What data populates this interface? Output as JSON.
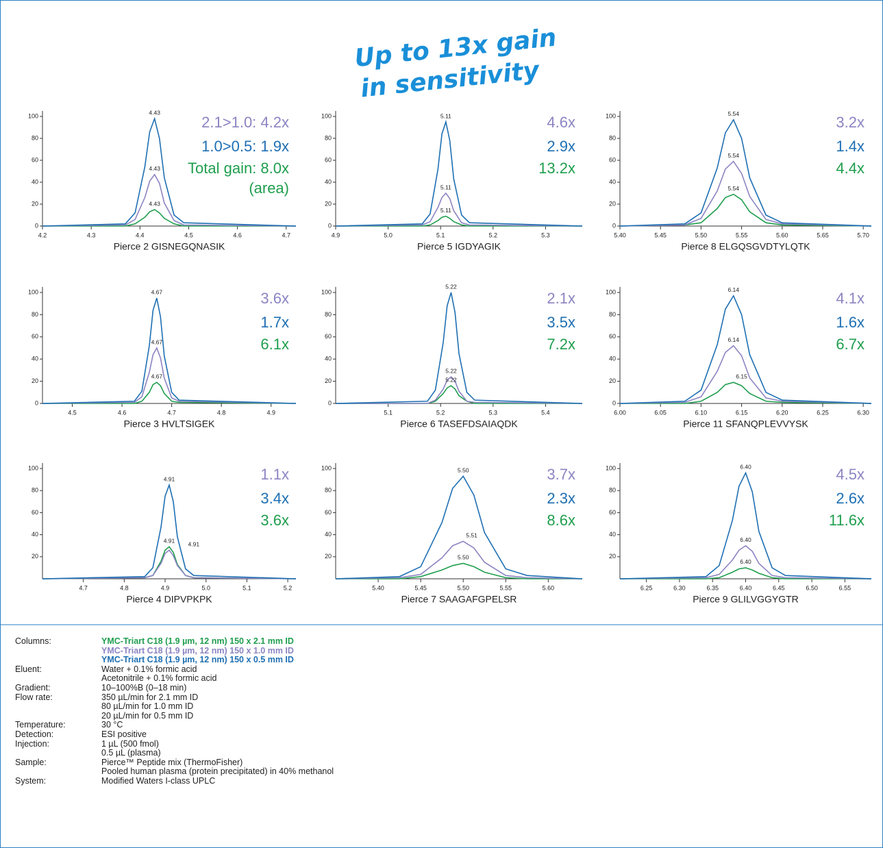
{
  "header": {
    "lines": [
      "Up to 13x gain",
      "in sensitivity"
    ]
  },
  "chart_data": [
    {
      "type": "line",
      "title": "Pierce 2 GISNEGQNASIK",
      "x": [
        4.2,
        4.37,
        4.39,
        4.41,
        4.42,
        4.43,
        4.44,
        4.45,
        4.47,
        4.49,
        4.72
      ],
      "xlim": [
        4.2,
        4.72
      ],
      "xticks": [
        4.2,
        4.3,
        4.4,
        4.5,
        4.6,
        4.7
      ],
      "ylim": [
        0,
        105
      ],
      "yticks": [
        0,
        20,
        40,
        60,
        80,
        100
      ],
      "series": [
        {
          "color": "#1e6fb3",
          "values": [
            0,
            2,
            12,
            54,
            86,
            98,
            80,
            44,
            10,
            3,
            0
          ]
        },
        {
          "color": "#8c84c2",
          "values": [
            0,
            1,
            6,
            26,
            41,
            47,
            39,
            21,
            5,
            1,
            0
          ]
        },
        {
          "color": "#1f9e4e",
          "values": [
            0,
            0,
            2,
            8,
            13,
            15,
            12,
            7,
            2,
            0,
            0
          ]
        }
      ],
      "peak_labels": [
        {
          "x": 4.43,
          "y": 98,
          "label": "4.43"
        },
        {
          "x": 4.43,
          "y": 47,
          "label": "4.43"
        },
        {
          "x": 4.43,
          "y": 15,
          "label": "4.43"
        }
      ],
      "gains": [
        {
          "text": "2.1>1.0: 4.2x",
          "color": "#8c84c2"
        },
        {
          "text": "1.0>0.5: 1.9x",
          "color": "#1e6fb3"
        },
        {
          "text": "Total gain: 8.0x",
          "color": "#1f9e4e"
        },
        {
          "text": "(area)",
          "color": "#1f9e4e"
        }
      ]
    },
    {
      "type": "line",
      "title": "Pierce 5 IGDYAGIK",
      "x": [
        4.9,
        5.065,
        5.08,
        5.095,
        5.1025,
        5.11,
        5.1175,
        5.125,
        5.14,
        5.155,
        5.37
      ],
      "xlim": [
        4.9,
        5.37
      ],
      "xticks": [
        4.9,
        {
          "value": 5.0,
          "label": "5.0"
        },
        5.1,
        5.2,
        5.3
      ],
      "ylim": [
        0,
        105
      ],
      "yticks": [
        0,
        20,
        40,
        60,
        80,
        100
      ],
      "series": [
        {
          "color": "#1e6fb3",
          "values": [
            0,
            2,
            11,
            52,
            84,
            95,
            78,
            43,
            10,
            3,
            0
          ]
        },
        {
          "color": "#8c84c2",
          "values": [
            0,
            1,
            4,
            17,
            26,
            30,
            25,
            14,
            3,
            1,
            0
          ]
        },
        {
          "color": "#1f9e4e",
          "values": [
            0,
            0,
            1,
            5,
            8,
            9,
            7,
            4,
            1,
            0,
            0
          ]
        }
      ],
      "peak_labels": [
        {
          "x": 5.11,
          "y": 95,
          "label": "5.11"
        },
        {
          "x": 5.11,
          "y": 30,
          "label": "5.11"
        },
        {
          "x": 5.11,
          "y": 9,
          "label": "5.11"
        }
      ],
      "gains": [
        {
          "text": "4.6x",
          "color": "#8c84c2"
        },
        {
          "text": "2.9x",
          "color": "#1e6fb3"
        },
        {
          "text": "13.2x",
          "color": "#1f9e4e"
        }
      ]
    },
    {
      "type": "line",
      "title": "Pierce 8 ELGQSGVDTYLQTK",
      "x": [
        5.4,
        5.48,
        5.5,
        5.52,
        5.53,
        5.54,
        5.55,
        5.56,
        5.58,
        5.6,
        5.71
      ],
      "xlim": [
        5.4,
        5.71
      ],
      "xticks": [
        {
          "value": 5.4,
          "label": "5.40"
        },
        5.45,
        {
          "value": 5.5,
          "label": "5.50"
        },
        5.55,
        {
          "value": 5.6,
          "label": "5.60"
        },
        5.65,
        {
          "value": 5.7,
          "label": "5.70"
        }
      ],
      "ylim": [
        0,
        105
      ],
      "yticks": [
        0,
        20,
        40,
        60,
        80,
        100
      ],
      "series": [
        {
          "color": "#1e6fb3",
          "values": [
            0,
            2,
            12,
            53,
            85,
            97,
            80,
            44,
            10,
            3,
            0
          ]
        },
        {
          "color": "#8c84c2",
          "values": [
            0,
            1,
            7,
            32,
            52,
            59,
            48,
            27,
            6,
            2,
            0
          ]
        },
        {
          "color": "#1f9e4e",
          "values": [
            0,
            1,
            3,
            16,
            26,
            29,
            24,
            13,
            3,
            1,
            0
          ]
        }
      ],
      "peak_labels": [
        {
          "x": 5.54,
          "y": 97,
          "label": "5.54"
        },
        {
          "x": 5.54,
          "y": 59,
          "label": "5.54"
        },
        {
          "x": 5.54,
          "y": 29,
          "label": "5.54"
        }
      ],
      "gains": [
        {
          "text": "3.2x",
          "color": "#8c84c2"
        },
        {
          "text": "1.4x",
          "color": "#1e6fb3"
        },
        {
          "text": "4.4x",
          "color": "#1f9e4e"
        }
      ]
    },
    {
      "type": "line",
      "title": "Pierce 3 HVLTSIGEK",
      "x": [
        4.44,
        4.625,
        4.64,
        4.655,
        4.6625,
        4.67,
        4.6775,
        4.685,
        4.7,
        4.715,
        4.95
      ],
      "xlim": [
        4.44,
        4.95
      ],
      "xticks": [
        4.5,
        4.6,
        4.7,
        4.8,
        4.9
      ],
      "ylim": [
        0,
        105
      ],
      "yticks": [
        0,
        20,
        40,
        60,
        80,
        100
      ],
      "series": [
        {
          "color": "#1e6fb3",
          "values": [
            0,
            2,
            11,
            52,
            84,
            95,
            78,
            43,
            10,
            3,
            0
          ]
        },
        {
          "color": "#8c84c2",
          "values": [
            0,
            1,
            6,
            28,
            44,
            50,
            41,
            23,
            5,
            2,
            0
          ]
        },
        {
          "color": "#1f9e4e",
          "values": [
            0,
            0,
            2,
            10,
            17,
            19,
            16,
            9,
            2,
            1,
            0
          ]
        }
      ],
      "peak_labels": [
        {
          "x": 4.67,
          "y": 95,
          "label": "4.67"
        },
        {
          "x": 4.67,
          "y": 50,
          "label": "4.67"
        },
        {
          "x": 4.67,
          "y": 19,
          "label": "4.67"
        }
      ],
      "gains": [
        {
          "text": "3.6x",
          "color": "#8c84c2"
        },
        {
          "text": "1.7x",
          "color": "#1e6fb3"
        },
        {
          "text": "6.1x",
          "color": "#1f9e4e"
        }
      ]
    },
    {
      "type": "line",
      "title": "Pierce 6 TASEFDSAIAQDK",
      "x": [
        5.0,
        5.175,
        5.19,
        5.205,
        5.2125,
        5.22,
        5.2275,
        5.235,
        5.25,
        5.265,
        5.47
      ],
      "xlim": [
        5.0,
        5.47
      ],
      "xticks": [
        5.1,
        5.2,
        5.3,
        5.4
      ],
      "ylim": [
        0,
        105
      ],
      "yticks": [
        0,
        20,
        40,
        60,
        80,
        100
      ],
      "series": [
        {
          "color": "#1e6fb3",
          "values": [
            0,
            2,
            12,
            55,
            88,
            100,
            82,
            45,
            10,
            3,
            0
          ]
        },
        {
          "color": "#8c84c2",
          "values": [
            0,
            0,
            3,
            13,
            21,
            24,
            20,
            11,
            2,
            1,
            0
          ]
        },
        {
          "color": "#1f9e4e",
          "values": [
            0,
            0,
            2,
            9,
            14,
            16,
            13,
            7,
            2,
            0,
            0
          ]
        }
      ],
      "peak_labels": [
        {
          "x": 5.22,
          "y": 100,
          "label": "5.22"
        },
        {
          "x": 5.22,
          "y": 24,
          "label": "5.22"
        },
        {
          "x": 5.22,
          "y": 16,
          "label": "5.22"
        }
      ],
      "gains": [
        {
          "text": "2.1x",
          "color": "#8c84c2"
        },
        {
          "text": "3.5x",
          "color": "#1e6fb3"
        },
        {
          "text": "7.2x",
          "color": "#1f9e4e"
        }
      ]
    },
    {
      "type": "line",
      "title": "Pierce 11 SFANQPLEVVYSK",
      "x": [
        6.0,
        6.08,
        6.1,
        6.12,
        6.13,
        6.14,
        6.15,
        6.16,
        6.18,
        6.2,
        6.31
      ],
      "xlim": [
        6.0,
        6.31
      ],
      "xticks": [
        {
          "value": 6.0,
          "label": "6.00"
        },
        6.05,
        {
          "value": 6.1,
          "label": "6.10"
        },
        6.15,
        {
          "value": 6.2,
          "label": "6.20"
        },
        6.25,
        {
          "value": 6.3,
          "label": "6.30"
        }
      ],
      "ylim": [
        0,
        105
      ],
      "yticks": [
        0,
        20,
        40,
        60,
        80,
        100
      ],
      "series": [
        {
          "color": "#1e6fb3",
          "values": [
            0,
            2,
            12,
            53,
            85,
            97,
            80,
            44,
            10,
            3,
            0
          ]
        },
        {
          "color": "#8c84c2",
          "values": [
            0,
            1,
            6,
            29,
            46,
            52,
            43,
            23,
            5,
            2,
            0
          ]
        },
        {
          "color": "#1f9e4e",
          "values": [
            0,
            0,
            2,
            10,
            17,
            19,
            16,
            9,
            2,
            1,
            0
          ]
        }
      ],
      "peak_labels": [
        {
          "x": 6.14,
          "y": 97,
          "label": "6.14"
        },
        {
          "x": 6.14,
          "y": 52,
          "label": "6.14"
        },
        {
          "x": 6.15,
          "y": 19,
          "label": "6.15"
        }
      ],
      "gains": [
        {
          "text": "4.1x",
          "color": "#8c84c2"
        },
        {
          "text": "1.6x",
          "color": "#1e6fb3"
        },
        {
          "text": "6.7x",
          "color": "#1f9e4e"
        }
      ]
    },
    {
      "type": "line",
      "title": "Pierce 4 DIPVPKPK",
      "x": [
        4.6,
        4.85,
        4.87,
        4.89,
        4.9,
        4.91,
        4.92,
        4.93,
        4.95,
        4.97,
        5.22
      ],
      "xlim": [
        4.6,
        5.22
      ],
      "xticks": [
        4.7,
        4.8,
        4.9,
        {
          "value": 5.0,
          "label": "5.0"
        },
        5.1,
        5.2
      ],
      "ylim": [
        0,
        105
      ],
      "yticks": [
        20,
        40,
        60,
        80,
        100
      ],
      "series": [
        {
          "color": "#1e6fb3",
          "values": [
            0,
            2,
            10,
            47,
            75,
            85,
            70,
            38,
            9,
            3,
            0
          ]
        },
        {
          "color": "#8c84c2",
          "values": [
            0,
            1,
            3,
            14,
            23,
            26,
            21,
            12,
            3,
            1,
            0
          ]
        },
        {
          "color": "#1f9e4e",
          "values": [
            0,
            1,
            3,
            16,
            26,
            29,
            24,
            13,
            3,
            1,
            0
          ]
        }
      ],
      "peak_labels": [
        {
          "x": 4.91,
          "y": 85,
          "label": "4.91"
        },
        {
          "x": 4.91,
          "y": 29,
          "label": "4.91"
        },
        {
          "x": 4.97,
          "y": 26,
          "label": "4.91"
        }
      ],
      "gains": [
        {
          "text": "1.1x",
          "color": "#8c84c2"
        },
        {
          "text": "3.4x",
          "color": "#1e6fb3"
        },
        {
          "text": "3.6x",
          "color": "#1f9e4e"
        }
      ]
    },
    {
      "type": "line",
      "title": "Pierce 7 SAAGAFGPELSR",
      "x": [
        5.35,
        5.425,
        5.45,
        5.475,
        5.4875,
        5.5,
        5.5125,
        5.525,
        5.55,
        5.575,
        5.64
      ],
      "xlim": [
        5.35,
        5.64
      ],
      "xticks": [
        {
          "value": 5.4,
          "label": "5.40"
        },
        5.45,
        {
          "value": 5.5,
          "label": "5.50"
        },
        5.55,
        {
          "value": 5.6,
          "label": "5.60"
        }
      ],
      "ylim": [
        0,
        105
      ],
      "yticks": [
        20,
        40,
        60,
        80,
        100
      ],
      "series": [
        {
          "color": "#1e6fb3",
          "values": [
            0,
            2,
            11,
            51,
            82,
            93,
            76,
            42,
            9,
            3,
            0
          ]
        },
        {
          "color": "#8c84c2",
          "values": [
            0,
            1,
            4,
            19,
            30,
            34,
            28,
            15,
            3,
            1,
            0
          ]
        },
        {
          "color": "#1f9e4e",
          "values": [
            0,
            0,
            2,
            8,
            12,
            14,
            11,
            6,
            1,
            0,
            0
          ]
        }
      ],
      "peak_labels": [
        {
          "x": 5.5,
          "y": 93,
          "label": "5.50"
        },
        {
          "x": 5.51,
          "y": 34,
          "label": "5.51"
        },
        {
          "x": 5.5,
          "y": 14,
          "label": "5.50"
        }
      ],
      "gains": [
        {
          "text": "3.7x",
          "color": "#8c84c2"
        },
        {
          "text": "2.3x",
          "color": "#1e6fb3"
        },
        {
          "text": "8.6x",
          "color": "#1f9e4e"
        }
      ]
    },
    {
      "type": "line",
      "title": "Pierce 9 GLILVGGYGTR",
      "x": [
        6.21,
        6.34,
        6.36,
        6.38,
        6.39,
        6.4,
        6.41,
        6.42,
        6.44,
        6.46,
        6.59
      ],
      "xlim": [
        6.21,
        6.59
      ],
      "xticks": [
        6.25,
        {
          "value": 6.3,
          "label": "6.30"
        },
        6.35,
        {
          "value": 6.4,
          "label": "6.40"
        },
        6.45,
        {
          "value": 6.5,
          "label": "6.50"
        },
        6.55
      ],
      "ylim": [
        0,
        105
      ],
      "yticks": [
        20,
        40,
        60,
        80,
        100
      ],
      "series": [
        {
          "color": "#1e6fb3",
          "values": [
            0,
            2,
            12,
            53,
            84,
            96,
            79,
            43,
            10,
            3,
            0
          ]
        },
        {
          "color": "#8c84c2",
          "values": [
            0,
            1,
            4,
            17,
            26,
            30,
            25,
            14,
            3,
            1,
            0
          ]
        },
        {
          "color": "#1f9e4e",
          "values": [
            0,
            0,
            1,
            6,
            9,
            10,
            8,
            5,
            1,
            0,
            0
          ]
        }
      ],
      "peak_labels": [
        {
          "x": 6.4,
          "y": 96,
          "label": "6.40"
        },
        {
          "x": 6.4,
          "y": 30,
          "label": "6.40"
        },
        {
          "x": 6.4,
          "y": 10,
          "label": "6.40"
        }
      ],
      "gains": [
        {
          "text": "4.5x",
          "color": "#8c84c2"
        },
        {
          "text": "2.6x",
          "color": "#1e6fb3"
        },
        {
          "text": "11.6x",
          "color": "#1f9e4e"
        }
      ]
    }
  ],
  "conditions": {
    "rows": [
      {
        "label": "Columns:",
        "lines": [
          "YMC-Triart C18 (1.9 µm, 12 nm) 150 x 2.1 mm ID",
          "YMC-Triart C18 (1.9 µm, 12 nm) 150 x 1.0 mm ID",
          "YMC-Triart C18 (1.9 µm, 12 nm) 150 x 0.5 mm ID"
        ],
        "colors": [
          "#1f9e4e",
          "#8c84c2",
          "#1e6fb3"
        ]
      },
      {
        "label": "Eluent:",
        "lines": [
          "Water + 0.1% formic acid",
          "Acetonitrile + 0.1% formic acid"
        ]
      },
      {
        "label": "Gradient:",
        "lines": [
          "10–100%B (0–18 min)"
        ]
      },
      {
        "label": "Flow rate:",
        "lines": [
          "350 µL/min for 2.1 mm ID",
          "80 µL/min for 1.0 mm ID",
          "20 µL/min for 0.5 mm ID"
        ]
      },
      {
        "label": "Temperature:",
        "lines": [
          "30 °C"
        ]
      },
      {
        "label": "Detection:",
        "lines": [
          "ESI positive"
        ]
      },
      {
        "label": "Injection:",
        "lines": [
          "1 µL (500 fmol)",
          "0.5 µL (plasma)"
        ]
      },
      {
        "label": "Sample:",
        "lines": [
          "Pierce™ Peptide mix (ThermoFisher)",
          "Pooled human plasma (protein precipitated) in 40% methanol"
        ]
      },
      {
        "label": "System:",
        "lines": [
          "Modified Waters I-class UPLC"
        ]
      }
    ]
  }
}
